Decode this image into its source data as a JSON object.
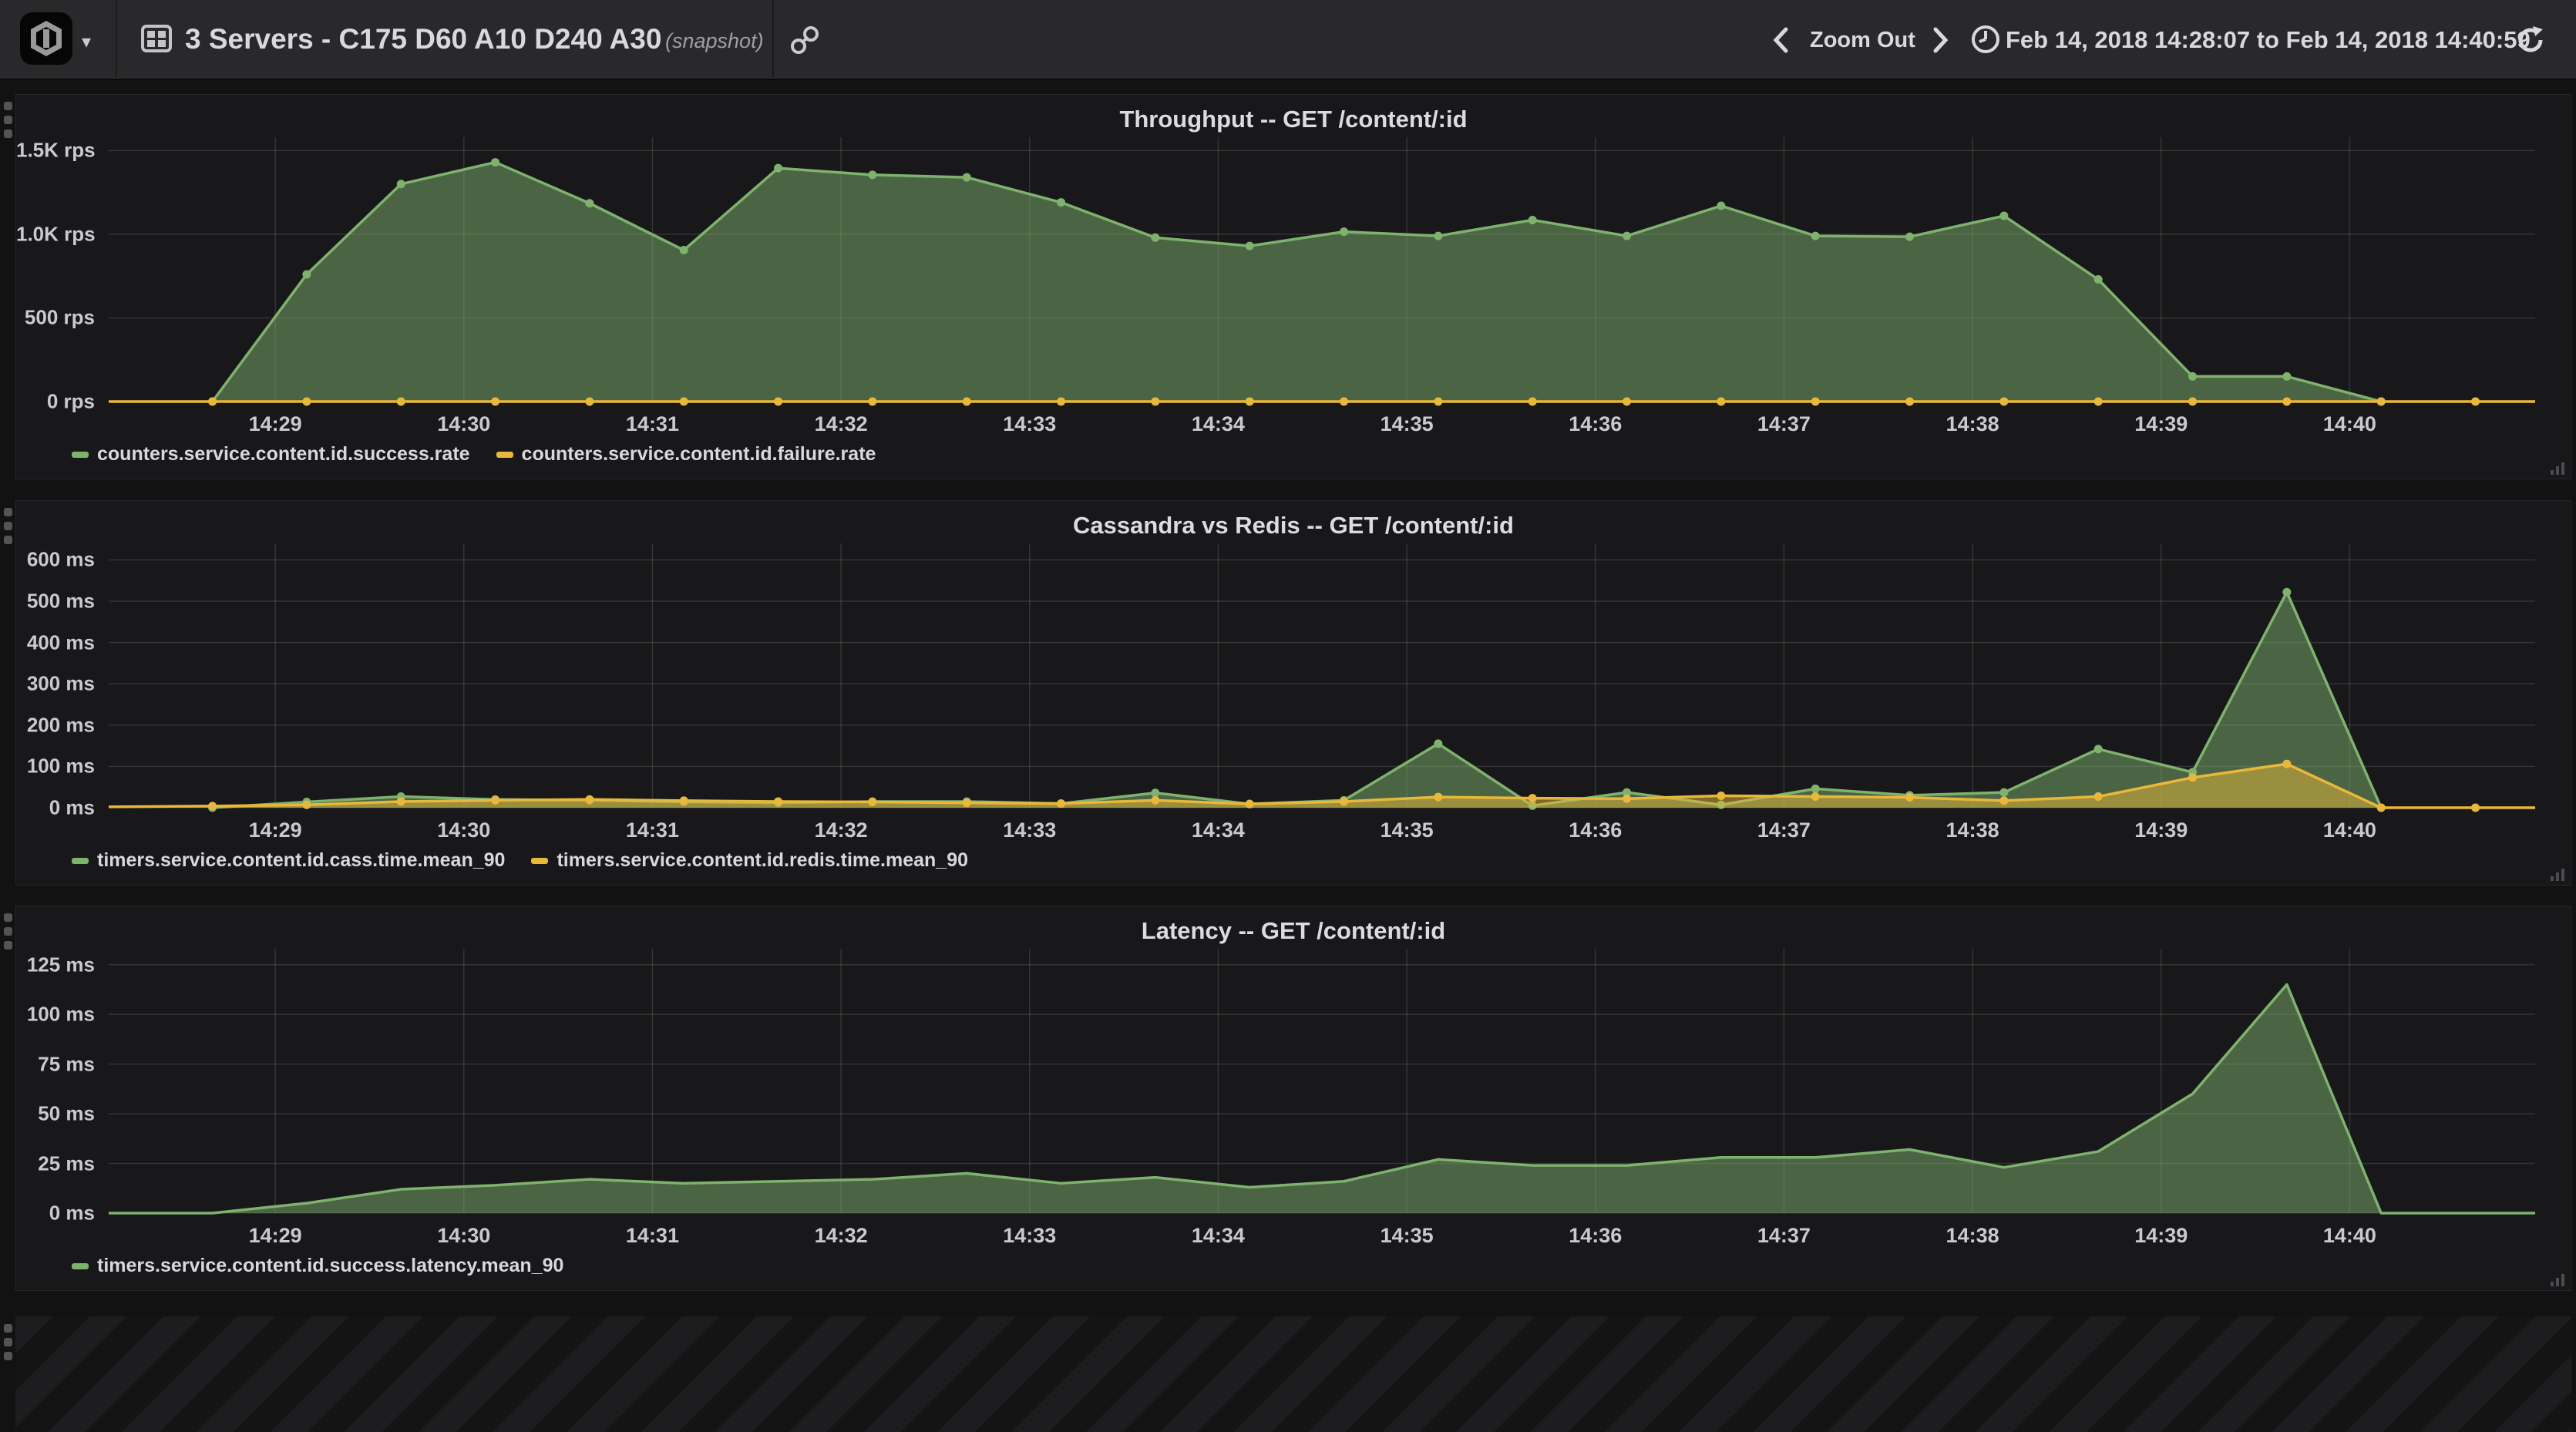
{
  "header": {
    "title": "3 Servers - C175 D60 A10 D240 A30",
    "snapshot_label": "(snapshot)",
    "zoom_out_label": "Zoom Out",
    "time_range": "Feb 14, 2018 14:28:07 to Feb 14, 2018 14:40:59",
    "icons": [
      "app-logo",
      "dropdown-caret",
      "dashboard-icon",
      "share-link-icon",
      "chevron-left",
      "chevron-right",
      "clock-icon",
      "refresh-icon"
    ]
  },
  "colors": {
    "green": "#7eb26d",
    "yellow": "#eab839",
    "navbar_bg": "#29292b",
    "panel_bg": "#18181a",
    "page_bg": "#121213",
    "grid": "rgba(255,255,255,0.12)",
    "text": "#d8d9da"
  },
  "chart_data": [
    {
      "type": "area",
      "title": "Throughput -- GET /content/:id",
      "ylabel_unit": "rps",
      "ymax": 1580,
      "xdomain": [
        7,
        779
      ],
      "grid": true,
      "legend_position": "bottom-left",
      "yticks": [
        {
          "v": 0,
          "label": "0 rps"
        },
        {
          "v": 500,
          "label": "500 rps"
        },
        {
          "v": 1000,
          "label": "1.0K rps"
        },
        {
          "v": 1500,
          "label": "1.5K rps"
        }
      ],
      "xticks": [
        {
          "t": 60,
          "label": "14:29"
        },
        {
          "t": 120,
          "label": "14:30"
        },
        {
          "t": 180,
          "label": "14:31"
        },
        {
          "t": 240,
          "label": "14:32"
        },
        {
          "t": 300,
          "label": "14:33"
        },
        {
          "t": 360,
          "label": "14:34"
        },
        {
          "t": 420,
          "label": "14:35"
        },
        {
          "t": 480,
          "label": "14:36"
        },
        {
          "t": 540,
          "label": "14:37"
        },
        {
          "t": 600,
          "label": "14:38"
        },
        {
          "t": 660,
          "label": "14:39"
        },
        {
          "t": 720,
          "label": "14:40"
        }
      ],
      "series": [
        {
          "name": "counters.service.content.id.success.rate",
          "color": "#7eb26d",
          "fill": 0.5,
          "dots": true,
          "points": [
            [
              40,
              0
            ],
            [
              70,
              760
            ],
            [
              100,
              1300
            ],
            [
              130,
              1430
            ],
            [
              160,
              1185
            ],
            [
              190,
              905
            ],
            [
              220,
              1395
            ],
            [
              250,
              1355
            ],
            [
              280,
              1340
            ],
            [
              310,
              1190
            ],
            [
              340,
              980
            ],
            [
              370,
              930
            ],
            [
              400,
              1015
            ],
            [
              430,
              990
            ],
            [
              460,
              1085
            ],
            [
              490,
              990
            ],
            [
              520,
              1170
            ],
            [
              550,
              990
            ],
            [
              580,
              985
            ],
            [
              610,
              1110
            ],
            [
              640,
              730
            ],
            [
              670,
              150
            ],
            [
              700,
              150
            ],
            [
              730,
              0
            ]
          ]
        },
        {
          "name": "counters.service.content.id.failure.rate",
          "color": "#eab839",
          "fill": 0,
          "dots": true,
          "pre": [
            7,
            0
          ],
          "post": [
            779,
            0
          ],
          "points": [
            [
              40,
              0
            ],
            [
              70,
              0
            ],
            [
              100,
              0
            ],
            [
              130,
              0
            ],
            [
              160,
              0
            ],
            [
              190,
              0
            ],
            [
              220,
              0
            ],
            [
              250,
              0
            ],
            [
              280,
              0
            ],
            [
              310,
              0
            ],
            [
              340,
              0
            ],
            [
              370,
              0
            ],
            [
              400,
              0
            ],
            [
              430,
              0
            ],
            [
              460,
              0
            ],
            [
              490,
              0
            ],
            [
              520,
              0
            ],
            [
              550,
              0
            ],
            [
              580,
              0
            ],
            [
              610,
              0
            ],
            [
              640,
              0
            ],
            [
              670,
              0
            ],
            [
              700,
              0
            ],
            [
              730,
              0
            ],
            [
              760,
              0
            ]
          ]
        }
      ]
    },
    {
      "type": "area",
      "title": "Cassandra vs Redis -- GET /content/:id",
      "ylabel_unit": "ms",
      "ymax": 640,
      "xdomain": [
        7,
        779
      ],
      "grid": true,
      "legend_position": "bottom-left",
      "yticks": [
        {
          "v": 0,
          "label": "0 ms"
        },
        {
          "v": 100,
          "label": "100 ms"
        },
        {
          "v": 200,
          "label": "200 ms"
        },
        {
          "v": 300,
          "label": "300 ms"
        },
        {
          "v": 400,
          "label": "400 ms"
        },
        {
          "v": 500,
          "label": "500 ms"
        },
        {
          "v": 600,
          "label": "600 ms"
        }
      ],
      "xticks": [
        {
          "t": 60,
          "label": "14:29"
        },
        {
          "t": 120,
          "label": "14:30"
        },
        {
          "t": 180,
          "label": "14:31"
        },
        {
          "t": 240,
          "label": "14:32"
        },
        {
          "t": 300,
          "label": "14:33"
        },
        {
          "t": 360,
          "label": "14:34"
        },
        {
          "t": 420,
          "label": "14:35"
        },
        {
          "t": 480,
          "label": "14:36"
        },
        {
          "t": 540,
          "label": "14:37"
        },
        {
          "t": 600,
          "label": "14:38"
        },
        {
          "t": 660,
          "label": "14:39"
        },
        {
          "t": 720,
          "label": "14:40"
        }
      ],
      "series": [
        {
          "name": "timers.service.content.id.cass.time.mean_90",
          "color": "#7eb26d",
          "fill": 0.5,
          "dots": true,
          "points": [
            [
              40,
              0
            ],
            [
              70,
              14
            ],
            [
              100,
              27
            ],
            [
              130,
              20
            ],
            [
              160,
              18
            ],
            [
              190,
              14
            ],
            [
              220,
              12
            ],
            [
              250,
              15
            ],
            [
              280,
              15
            ],
            [
              310,
              10
            ],
            [
              340,
              36
            ],
            [
              370,
              9
            ],
            [
              400,
              18
            ],
            [
              430,
              155
            ],
            [
              460,
              5
            ],
            [
              490,
              37
            ],
            [
              520,
              7
            ],
            [
              550,
              46
            ],
            [
              580,
              30
            ],
            [
              610,
              37
            ],
            [
              640,
              142
            ],
            [
              670,
              86
            ],
            [
              700,
              522
            ],
            [
              730,
              0
            ]
          ]
        },
        {
          "name": "timers.service.content.id.redis.time.mean_90",
          "color": "#eab839",
          "fill": 0.5,
          "dots": true,
          "pre": [
            7,
            2
          ],
          "post": [
            779,
            0
          ],
          "points": [
            [
              40,
              4
            ],
            [
              70,
              7
            ],
            [
              100,
              15
            ],
            [
              130,
              18
            ],
            [
              160,
              20
            ],
            [
              190,
              17
            ],
            [
              220,
              15
            ],
            [
              250,
              14
            ],
            [
              280,
              12
            ],
            [
              310,
              10
            ],
            [
              340,
              18
            ],
            [
              370,
              9
            ],
            [
              400,
              15
            ],
            [
              430,
              26
            ],
            [
              460,
              23
            ],
            [
              490,
              22
            ],
            [
              520,
              29
            ],
            [
              550,
              27
            ],
            [
              580,
              25
            ],
            [
              610,
              17
            ],
            [
              640,
              27
            ],
            [
              670,
              73
            ],
            [
              700,
              106
            ],
            [
              730,
              0
            ],
            [
              760,
              0
            ]
          ]
        }
      ]
    },
    {
      "type": "area",
      "title": "Latency -- GET /content/:id",
      "ylabel_unit": "ms",
      "ymax": 133,
      "xdomain": [
        7,
        779
      ],
      "grid": true,
      "legend_position": "bottom-left",
      "yticks": [
        {
          "v": 0,
          "label": "0 ms"
        },
        {
          "v": 25,
          "label": "25 ms"
        },
        {
          "v": 50,
          "label": "50 ms"
        },
        {
          "v": 75,
          "label": "75 ms"
        },
        {
          "v": 100,
          "label": "100 ms"
        },
        {
          "v": 125,
          "label": "125 ms"
        }
      ],
      "xticks": [
        {
          "t": 60,
          "label": "14:29"
        },
        {
          "t": 120,
          "label": "14:30"
        },
        {
          "t": 180,
          "label": "14:31"
        },
        {
          "t": 240,
          "label": "14:32"
        },
        {
          "t": 300,
          "label": "14:33"
        },
        {
          "t": 360,
          "label": "14:34"
        },
        {
          "t": 420,
          "label": "14:35"
        },
        {
          "t": 480,
          "label": "14:36"
        },
        {
          "t": 540,
          "label": "14:37"
        },
        {
          "t": 600,
          "label": "14:38"
        },
        {
          "t": 660,
          "label": "14:39"
        },
        {
          "t": 720,
          "label": "14:40"
        }
      ],
      "series": [
        {
          "name": "timers.service.content.id.success.latency.mean_90",
          "color": "#7eb26d",
          "fill": 0.5,
          "dots": false,
          "pre": [
            7,
            0
          ],
          "post": [
            779,
            0
          ],
          "points": [
            [
              40,
              0
            ],
            [
              70,
              5
            ],
            [
              100,
              12
            ],
            [
              130,
              14
            ],
            [
              160,
              17
            ],
            [
              190,
              15
            ],
            [
              220,
              16
            ],
            [
              250,
              17
            ],
            [
              280,
              20
            ],
            [
              310,
              15
            ],
            [
              340,
              18
            ],
            [
              370,
              13
            ],
            [
              400,
              16
            ],
            [
              430,
              27
            ],
            [
              460,
              24
            ],
            [
              490,
              24
            ],
            [
              520,
              28
            ],
            [
              550,
              28
            ],
            [
              580,
              32
            ],
            [
              610,
              23
            ],
            [
              640,
              31
            ],
            [
              670,
              60
            ],
            [
              700,
              115
            ],
            [
              730,
              0
            ]
          ]
        }
      ]
    }
  ]
}
